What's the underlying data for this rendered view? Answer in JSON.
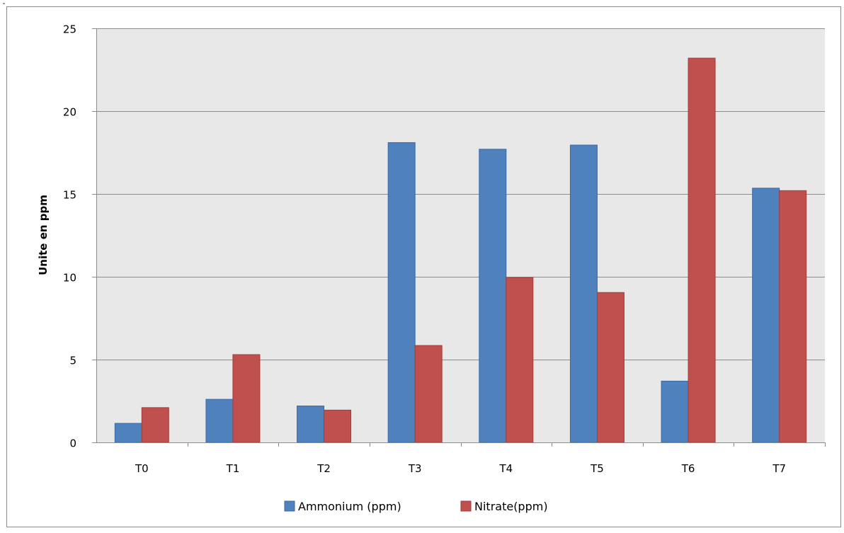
{
  "chart_data": {
    "type": "bar",
    "title": "",
    "xlabel": "",
    "ylabel": "Unite en ppm",
    "categories": [
      "T0",
      "T1",
      "T2",
      "T3",
      "T4",
      "T5",
      "T6",
      "T7"
    ],
    "series": [
      {
        "name": "Ammonium (ppm)",
        "color": "#4f81bd",
        "values": [
          1.15,
          2.6,
          2.2,
          18.1,
          17.7,
          17.95,
          3.7,
          15.35
        ]
      },
      {
        "name": "Nitrate(ppm)",
        "color": "#c0504d",
        "values": [
          2.1,
          5.3,
          1.95,
          5.85,
          9.95,
          9.05,
          23.2,
          15.2
        ]
      }
    ],
    "ylim": [
      0,
      25
    ],
    "yticks": [
      0,
      5,
      10,
      15,
      20,
      25
    ],
    "grid": true,
    "legend": "bottom",
    "plot_background": "#e8e8e8"
  }
}
